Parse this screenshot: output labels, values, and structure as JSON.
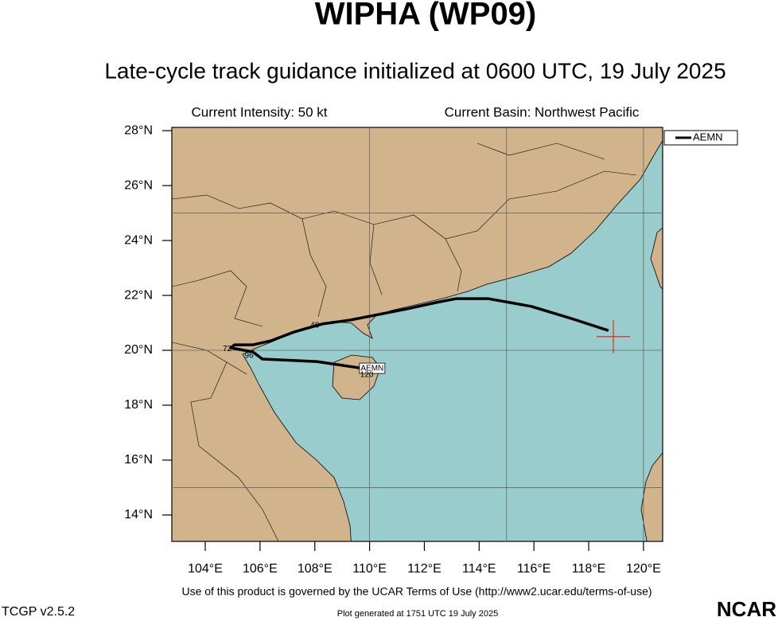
{
  "chart_data": {
    "type": "track",
    "title": "WIPHA (WP09)",
    "subtitle": "Late-cycle track guidance initialized at 0600 UTC, 19 July 2025",
    "left_header": "Current Intensity: 50 kt",
    "right_header": "Current Basin: Northwest Pacific",
    "footer": "Use of this product is governed by the UCAR Terms of Use (http://www2.ucar.edu/terms-of-use)",
    "version": "TCGP v2.5.2",
    "generated": "Plot generated at 1751 UTC   19 July 2025",
    "logo": "NCAR",
    "xlim": [
      102.78,
      120.7
    ],
    "ylim": [
      13.04,
      28.12
    ],
    "xticks": [
      {
        "value": 104,
        "label": "104°E"
      },
      {
        "value": 106,
        "label": "106°E"
      },
      {
        "value": 108,
        "label": "108°E"
      },
      {
        "value": 110,
        "label": "110°E"
      },
      {
        "value": 112,
        "label": "112°E"
      },
      {
        "value": 114,
        "label": "114°E"
      },
      {
        "value": 116,
        "label": "116°E"
      },
      {
        "value": 118,
        "label": "118°E"
      },
      {
        "value": 120,
        "label": "120°E"
      }
    ],
    "yticks": [
      {
        "value": 14,
        "label": "14°N"
      },
      {
        "value": 16,
        "label": "16°N"
      },
      {
        "value": 18,
        "label": "18°N"
      },
      {
        "value": 20,
        "label": "20°N"
      },
      {
        "value": 22,
        "label": "22°N"
      },
      {
        "value": 24,
        "label": "24°N"
      },
      {
        "value": 26,
        "label": "26°N"
      },
      {
        "value": 28,
        "label": "28°N"
      }
    ],
    "x_gridlines": [
      110,
      115,
      120
    ],
    "y_gridlines": [
      15,
      20,
      25
    ],
    "legend": "upper right",
    "current_position": {
      "x": 118.9,
      "y": 20.5,
      "color": "#e8281e"
    },
    "series": [
      {
        "name": "AEMN",
        "color": "#000000",
        "x": [
          118.72,
          117.36,
          115.9,
          114.34,
          113.15,
          112.42,
          111.32,
          110.3,
          109.28,
          108.27,
          107.25,
          106.41,
          105.74,
          105.07,
          104.93,
          105.74,
          106.09,
          108.07,
          109.63
        ],
        "y": [
          20.72,
          21.16,
          21.6,
          21.88,
          21.88,
          21.74,
          21.5,
          21.3,
          21.1,
          20.96,
          20.67,
          20.35,
          20.2,
          20.2,
          20.09,
          19.94,
          19.68,
          19.59,
          19.36
        ]
      }
    ],
    "annotations": [
      {
        "text": "48",
        "x": 108.0,
        "y": 20.9
      },
      {
        "text": "72",
        "x": 104.8,
        "y": 20.05
      },
      {
        "text": "96",
        "x": 105.6,
        "y": 19.8
      },
      {
        "text": "120",
        "x": 109.9,
        "y": 19.1
      }
    ]
  }
}
